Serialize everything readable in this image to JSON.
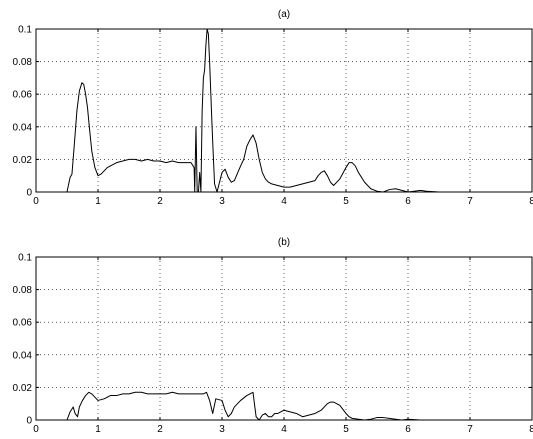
{
  "chart_data": [
    {
      "type": "line",
      "title": "(a)",
      "xlim": [
        0,
        8
      ],
      "ylim": [
        0,
        0.1
      ],
      "xticks": [
        "0",
        "1",
        "2",
        "3",
        "4",
        "5",
        "6",
        "7",
        "8"
      ],
      "yticks": [
        "0",
        "0.02",
        "0.04",
        "0.06",
        "0.08",
        "0.1"
      ],
      "grid": true,
      "line_color": "#000000",
      "series": [
        {
          "x": [
            0.0,
            0.5,
            0.55,
            0.58,
            0.62,
            0.66,
            0.7,
            0.74,
            0.77,
            0.8,
            0.83,
            0.86,
            0.9,
            0.95,
            1.0,
            1.05,
            1.1,
            1.15,
            1.2,
            1.3,
            1.4,
            1.5,
            1.6,
            1.7,
            1.8,
            1.9,
            2.0,
            2.1,
            2.2,
            2.3,
            2.4,
            2.5,
            2.55,
            2.56,
            2.58,
            2.6,
            2.62,
            2.64,
            2.66,
            2.68,
            2.7,
            2.72,
            2.74,
            2.76,
            2.78,
            2.8,
            2.82,
            2.84,
            2.86,
            2.88,
            2.92,
            2.96,
            3.0,
            3.05,
            3.1,
            3.15,
            3.2,
            3.3,
            3.35,
            3.4,
            3.45,
            3.5,
            3.55,
            3.6,
            3.65,
            3.7,
            3.75,
            3.8,
            3.9,
            4.0,
            4.1,
            4.2,
            4.3,
            4.4,
            4.5,
            4.55,
            4.6,
            4.65,
            4.7,
            4.75,
            4.8,
            4.9,
            5.0,
            5.05,
            5.1,
            5.15,
            5.2,
            5.3,
            5.4,
            5.5,
            5.6,
            5.7,
            5.8,
            5.9,
            6.0,
            6.1,
            6.2,
            6.3,
            6.5,
            7.0,
            7.5,
            8.0
          ],
          "values": [
            0.0,
            0.0,
            0.009,
            0.011,
            0.03,
            0.05,
            0.062,
            0.067,
            0.066,
            0.06,
            0.052,
            0.04,
            0.025,
            0.015,
            0.01,
            0.011,
            0.013,
            0.015,
            0.016,
            0.018,
            0.019,
            0.02,
            0.02,
            0.019,
            0.02,
            0.019,
            0.019,
            0.018,
            0.019,
            0.018,
            0.018,
            0.018,
            0.015,
            0.0,
            0.04,
            0.0,
            0.0,
            0.012,
            0.0,
            0.05,
            0.07,
            0.075,
            0.09,
            0.1,
            0.097,
            0.08,
            0.06,
            0.04,
            0.022,
            0.005,
            0.0,
            0.006,
            0.012,
            0.014,
            0.009,
            0.006,
            0.007,
            0.016,
            0.02,
            0.028,
            0.032,
            0.035,
            0.03,
            0.02,
            0.012,
            0.008,
            0.006,
            0.005,
            0.004,
            0.003,
            0.003,
            0.004,
            0.005,
            0.006,
            0.007,
            0.01,
            0.012,
            0.013,
            0.01,
            0.006,
            0.004,
            0.008,
            0.015,
            0.018,
            0.018,
            0.016,
            0.012,
            0.006,
            0.002,
            0.0005,
            0.0,
            0.0015,
            0.002,
            0.001,
            0.0,
            0.0005,
            0.001,
            0.0005,
            0.0,
            0.0,
            0.0,
            0.0
          ]
        }
      ]
    },
    {
      "type": "line",
      "title": "(b)",
      "xlim": [
        0,
        8
      ],
      "ylim": [
        0,
        0.1
      ],
      "xticks": [
        "0",
        "1",
        "2",
        "3",
        "4",
        "5",
        "6",
        "7",
        "8"
      ],
      "yticks": [
        "0",
        "0.02",
        "0.04",
        "0.06",
        "0.08",
        "0.1"
      ],
      "grid": true,
      "line_color": "#000000",
      "series": [
        {
          "x": [
            0.0,
            0.5,
            0.55,
            0.6,
            0.63,
            0.67,
            0.7,
            0.75,
            0.8,
            0.85,
            0.9,
            0.95,
            1.0,
            1.1,
            1.2,
            1.3,
            1.4,
            1.5,
            1.6,
            1.7,
            1.8,
            1.9,
            2.0,
            2.1,
            2.2,
            2.3,
            2.4,
            2.5,
            2.6,
            2.7,
            2.75,
            2.8,
            2.85,
            2.9,
            3.0,
            3.05,
            3.1,
            3.15,
            3.2,
            3.3,
            3.4,
            3.45,
            3.5,
            3.55,
            3.6,
            3.65,
            3.7,
            3.75,
            3.8,
            3.85,
            3.9,
            4.0,
            4.1,
            4.2,
            4.3,
            4.4,
            4.5,
            4.6,
            4.7,
            4.75,
            4.8,
            4.9,
            5.0,
            5.05,
            5.1,
            5.2,
            5.3,
            5.4,
            5.5,
            5.6,
            5.7,
            5.8,
            5.9,
            6.0,
            6.2,
            6.4,
            7.0,
            8.0
          ],
          "values": [
            0.0,
            0.0,
            0.005,
            0.008,
            0.004,
            0.002,
            0.008,
            0.012,
            0.015,
            0.017,
            0.016,
            0.014,
            0.012,
            0.013,
            0.015,
            0.015,
            0.016,
            0.016,
            0.017,
            0.017,
            0.016,
            0.016,
            0.016,
            0.016,
            0.017,
            0.016,
            0.016,
            0.016,
            0.016,
            0.016,
            0.017,
            0.012,
            0.004,
            0.013,
            0.012,
            0.006,
            0.002,
            0.004,
            0.008,
            0.012,
            0.015,
            0.016,
            0.017,
            0.002,
            0.0,
            0.003,
            0.004,
            0.002,
            0.002,
            0.004,
            0.004,
            0.006,
            0.005,
            0.004,
            0.002,
            0.003,
            0.004,
            0.006,
            0.01,
            0.011,
            0.011,
            0.009,
            0.004,
            0.002,
            0.001,
            0.0005,
            0.0,
            0.0005,
            0.0015,
            0.0015,
            0.001,
            0.0005,
            0.0,
            0.0005,
            0.0,
            0.0,
            0.0,
            0.0
          ]
        }
      ]
    }
  ]
}
